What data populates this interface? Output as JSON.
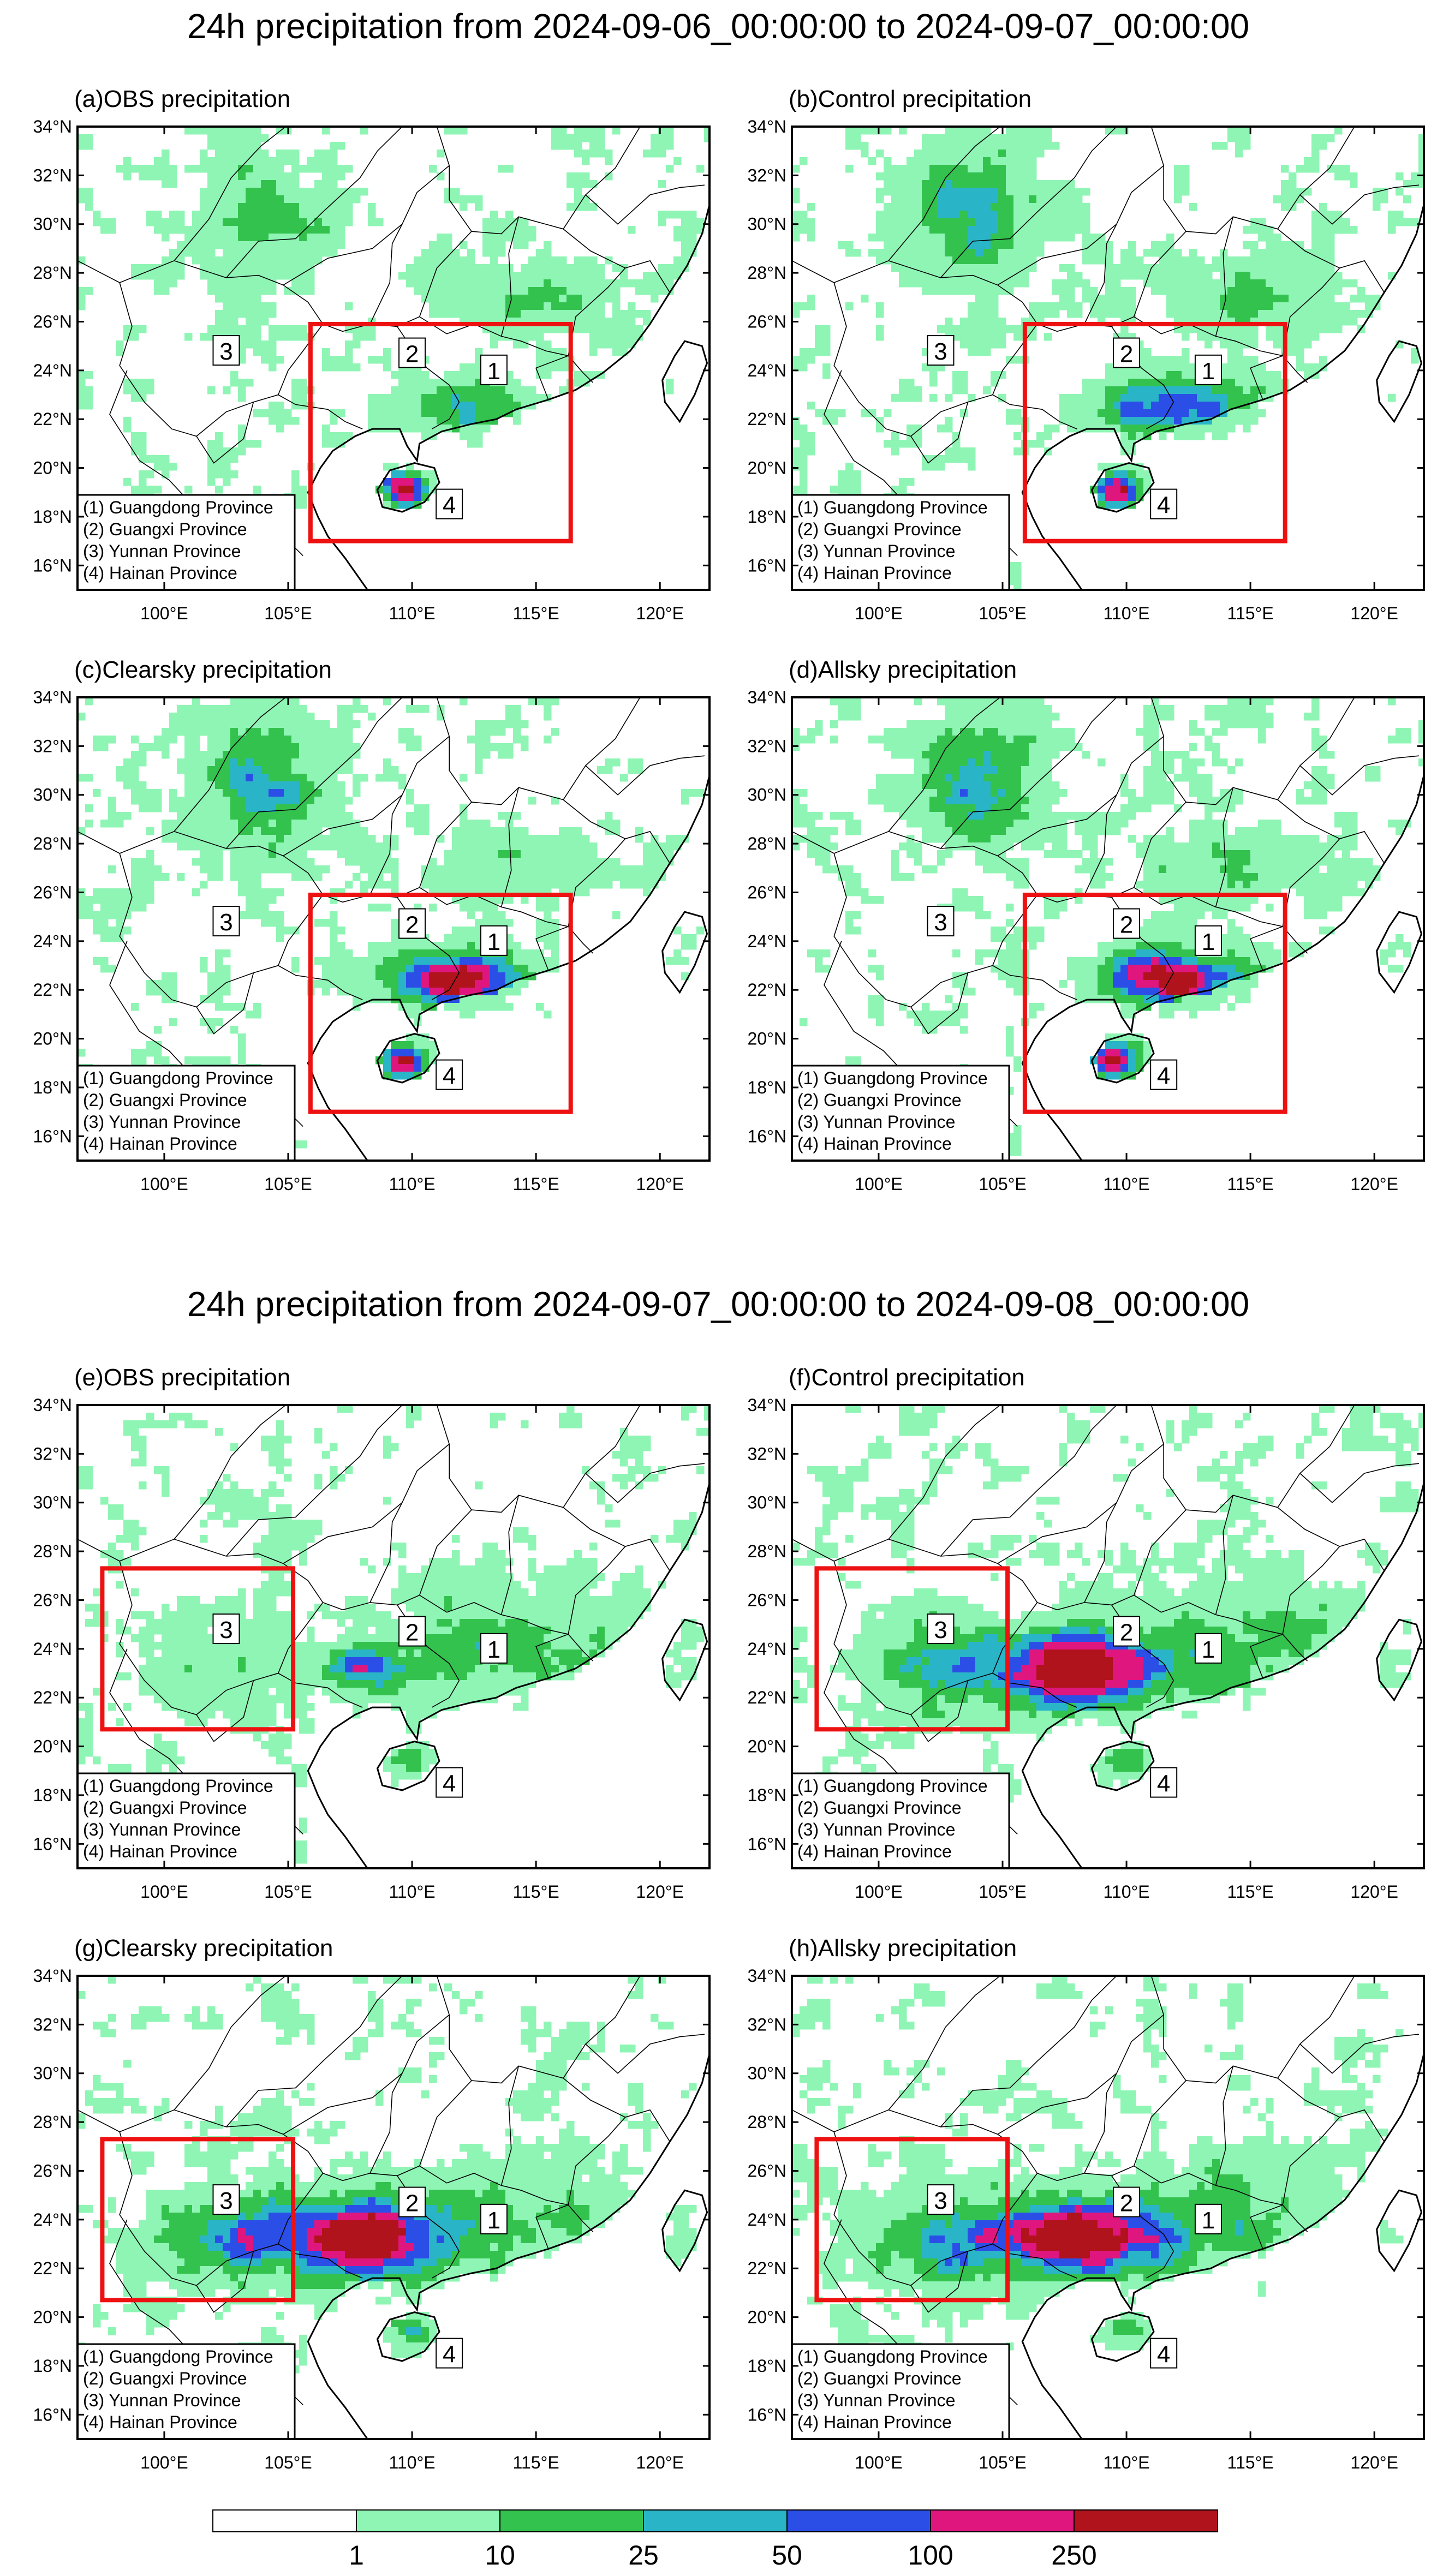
{
  "titles": [
    "24h precipitation from 2024-09-06_00:00:00 to 2024-09-07_00:00:00",
    "24h precipitation from 2024-09-07_00:00:00 to 2024-09-08_00:00:00"
  ],
  "panels": [
    {
      "label": "(a)OBS precipitation",
      "scenario": "obs",
      "day": 1
    },
    {
      "label": "(b)Control precipitation",
      "scenario": "control",
      "day": 1
    },
    {
      "label": "(c)Clearsky precipitation",
      "scenario": "clearsky",
      "day": 1
    },
    {
      "label": "(d)Allsky precipitation",
      "scenario": "allsky",
      "day": 1
    },
    {
      "label": "(e)OBS precipitation",
      "scenario": "obs",
      "day": 2
    },
    {
      "label": "(f)Control precipitation",
      "scenario": "control",
      "day": 2
    },
    {
      "label": "(g)Clearsky precipitation",
      "scenario": "clearsky",
      "day": 2
    },
    {
      "label": "(h)Allsky precipitation",
      "scenario": "allsky",
      "day": 2
    }
  ],
  "lat_ticks": [
    "34°N",
    "32°N",
    "30°N",
    "28°N",
    "26°N",
    "24°N",
    "22°N",
    "20°N",
    "18°N",
    "16°N"
  ],
  "lon_ticks": [
    "100°E",
    "105°E",
    "110°E",
    "115°E",
    "120°E"
  ],
  "map_extent": {
    "lon": [
      96.5,
      122.0
    ],
    "lat": [
      15.0,
      34.0
    ]
  },
  "province_markers": [
    {
      "num": "1",
      "lon": 113.3,
      "lat": 24.0
    },
    {
      "num": "2",
      "lon": 110.0,
      "lat": 24.7
    },
    {
      "num": "3",
      "lon": 102.5,
      "lat": 24.8
    },
    {
      "num": "4",
      "lon": 111.5,
      "lat": 18.5
    }
  ],
  "legend_items": [
    "(1) Guangdong Province",
    "(2) Guangxi Province",
    "(3) Yunnan Province",
    "(4) Hainan Province"
  ],
  "highlight_boxes": {
    "day1": {
      "lon": [
        105.9,
        116.4
      ],
      "lat": [
        17.0,
        25.9
      ]
    },
    "day2": {
      "lon": [
        97.5,
        105.2
      ],
      "lat": [
        20.7,
        27.3
      ]
    }
  },
  "colorbar": {
    "bins": [
      {
        "color": "#ffffff"
      },
      {
        "color": "#8ff5b5"
      },
      {
        "color": "#34c24f"
      },
      {
        "color": "#29b5c7"
      },
      {
        "color": "#2b4fe6"
      },
      {
        "color": "#e0167f"
      },
      {
        "color": "#b0131c"
      }
    ],
    "labels": [
      "1",
      "10",
      "25",
      "50",
      "100",
      "250"
    ]
  }
}
